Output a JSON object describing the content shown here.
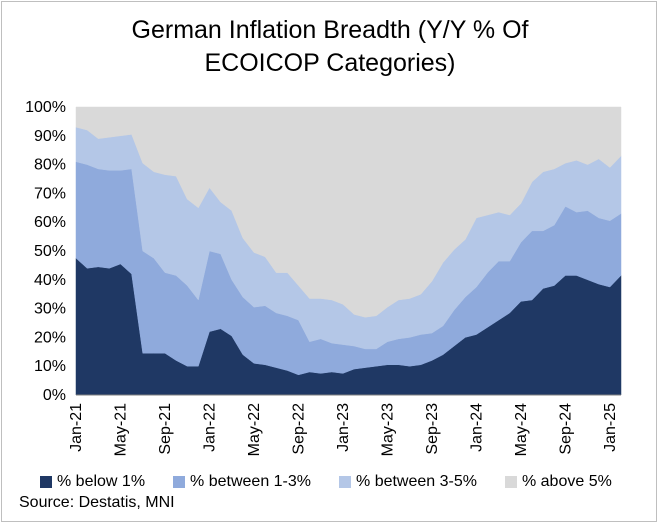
{
  "chart_data": {
    "type": "area",
    "stacked": true,
    "title": "German Inflation Breadth (Y/Y % Of ECOICOP Categories)",
    "title_lines": [
      "German Inflation Breadth (Y/Y % Of",
      "ECOICOP Categories)"
    ],
    "ylim": [
      0,
      100
    ],
    "yticks": [
      "0%",
      "10%",
      "20%",
      "30%",
      "40%",
      "50%",
      "60%",
      "70%",
      "80%",
      "90%",
      "100%"
    ],
    "xtick_labels": [
      "Jan-21",
      "May-21",
      "Sep-21",
      "Jan-22",
      "May-22",
      "Sep-22",
      "Jan-23",
      "May-23",
      "Sep-23",
      "Jan-24",
      "May-24",
      "Sep-24",
      "Jan-25"
    ],
    "categories": [
      "Jan-21",
      "Feb-21",
      "Mar-21",
      "Apr-21",
      "May-21",
      "Jun-21",
      "Jul-21",
      "Aug-21",
      "Sep-21",
      "Oct-21",
      "Nov-21",
      "Dec-21",
      "Jan-22",
      "Feb-22",
      "Mar-22",
      "Apr-22",
      "May-22",
      "Jun-22",
      "Jul-22",
      "Aug-22",
      "Sep-22",
      "Oct-22",
      "Nov-22",
      "Dec-22",
      "Jan-23",
      "Feb-23",
      "Mar-23",
      "Apr-23",
      "May-23",
      "Jun-23",
      "Jul-23",
      "Aug-23",
      "Sep-23",
      "Oct-23",
      "Nov-23",
      "Dec-23",
      "Jan-24",
      "Feb-24",
      "Mar-24",
      "Apr-24",
      "May-24",
      "Jun-24",
      "Jul-24",
      "Aug-24",
      "Sep-24",
      "Oct-24",
      "Nov-24",
      "Dec-24",
      "Jan-25",
      "Feb-25"
    ],
    "series": [
      {
        "name": "% below 1%",
        "color": "#1f3864",
        "values": [
          47.5,
          44,
          44.5,
          44,
          45.5,
          42,
          14.5,
          14.5,
          14.5,
          12,
          10,
          10,
          22,
          23,
          20.5,
          14,
          11,
          10.5,
          9.5,
          8.5,
          7,
          8,
          7.5,
          8,
          7.5,
          9,
          9.5,
          10,
          10.5,
          10.5,
          10,
          10.5,
          12,
          14,
          17,
          20,
          21,
          23.5,
          26,
          28.5,
          32.5,
          33,
          37,
          38,
          41.5,
          41.5,
          40,
          38.5,
          37.5,
          41.5
        ]
      },
      {
        "name": "% between 1-3%",
        "color": "#8faadc",
        "values": [
          33.5,
          36,
          34,
          34,
          32.5,
          36.5,
          35.5,
          33,
          28,
          29.5,
          28,
          23,
          28,
          26,
          19.5,
          20,
          19.5,
          20.5,
          19,
          19,
          19,
          10.5,
          12,
          10,
          10,
          8,
          6.5,
          6,
          8,
          9,
          10,
          10.5,
          9.5,
          10,
          12.5,
          14,
          16.5,
          19,
          20.5,
          18,
          20.5,
          24,
          20,
          21,
          24,
          22,
          24,
          23,
          23,
          21.5
        ]
      },
      {
        "name": "% between 3-5%",
        "color": "#b4c7e7",
        "values": [
          12,
          12,
          10.5,
          11.5,
          12,
          12,
          30.5,
          30,
          34,
          34.5,
          30,
          32,
          22,
          18,
          24,
          20.5,
          19,
          17,
          14,
          15,
          12,
          15,
          14,
          15,
          14,
          11,
          11,
          11.5,
          12,
          13.5,
          13.5,
          14,
          18,
          22,
          21,
          20,
          24,
          20,
          17,
          16,
          13.5,
          17,
          20.5,
          19.5,
          15,
          18,
          16,
          20.5,
          18.5,
          20
        ]
      },
      {
        "name": "% above 5%",
        "color": "#d9d9d9",
        "values": [
          7,
          8,
          11,
          10.5,
          10,
          9.5,
          19.5,
          22.5,
          23.5,
          24,
          32,
          35,
          28,
          33,
          36,
          45.5,
          50.5,
          52,
          57.5,
          57.5,
          62,
          66.5,
          66.5,
          67,
          68.5,
          72,
          73,
          72.5,
          69.5,
          67,
          66.5,
          65,
          60.5,
          54,
          49.5,
          46,
          38.5,
          37.5,
          36.5,
          37.5,
          33.5,
          26,
          22.5,
          21.5,
          19.5,
          18.5,
          20,
          18,
          21,
          17
        ]
      }
    ]
  },
  "legend": {
    "items": [
      {
        "label": "% below 1%",
        "color": "#1f3864"
      },
      {
        "label": "% between 1-3%",
        "color": "#8faadc"
      },
      {
        "label": "% between 3-5%",
        "color": "#b4c7e7"
      },
      {
        "label": "% above 5%",
        "color": "#d9d9d9"
      }
    ]
  },
  "source": "Source: Destatis, MNI"
}
